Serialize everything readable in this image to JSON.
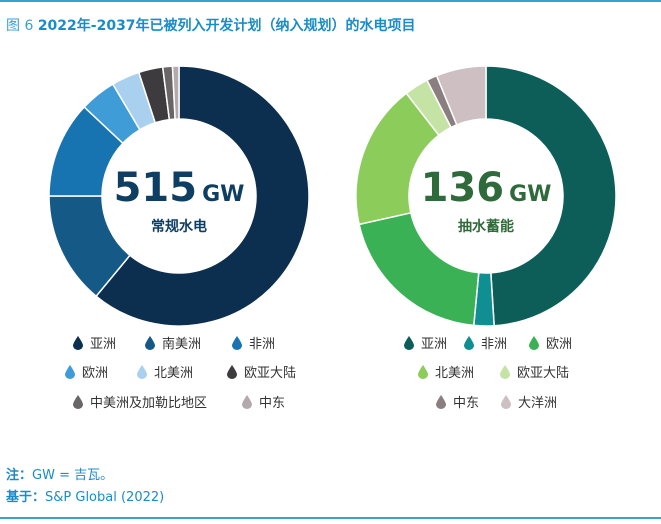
{
  "figure": {
    "label": "图 6",
    "title": "2022年-2037年已被列入开发计划（纳入规划）的水电项目"
  },
  "chart_data": [
    {
      "type": "pie",
      "total": "515",
      "unit": "GW",
      "label": "常规水电",
      "center_color": "#0f3e63",
      "series": [
        {
          "name": "亚洲",
          "value": 61,
          "color": "#0c2e4f"
        },
        {
          "name": "南美洲",
          "value": 14,
          "color": "#155a87"
        },
        {
          "name": "非洲",
          "value": 12,
          "color": "#1874b0"
        },
        {
          "name": "欧洲",
          "value": 4.5,
          "color": "#3f9cd6"
        },
        {
          "name": "北美洲",
          "value": 3.5,
          "color": "#a9d1ef"
        },
        {
          "name": "欧亚大陆",
          "value": 3,
          "color": "#3d3b3e"
        },
        {
          "name": "中美洲及加勒比地区",
          "value": 1.2,
          "color": "#6a6567"
        },
        {
          "name": "中东",
          "value": 0.8,
          "color": "#b3aaad"
        }
      ]
    },
    {
      "type": "pie",
      "total": "136",
      "unit": "GW",
      "label": "抽水蓄能",
      "center_color": "#2f6b3a",
      "series": [
        {
          "name": "亚洲",
          "value": 49,
          "color": "#0d5e58"
        },
        {
          "name": "非洲",
          "value": 2.5,
          "color": "#0f8f92"
        },
        {
          "name": "欧洲",
          "value": 20,
          "color": "#3bb155"
        },
        {
          "name": "北美洲",
          "value": 18,
          "color": "#8ccc5a"
        },
        {
          "name": "欧亚大陆",
          "value": 3,
          "color": "#c5e3a5"
        },
        {
          "name": "中东",
          "value": 1.3,
          "color": "#8b7e81"
        },
        {
          "name": "大洋洲",
          "value": 6.2,
          "color": "#cdbfc2"
        }
      ]
    }
  ],
  "notes": {
    "note_label": "注：",
    "note_text": "GW = 吉瓦。",
    "source_label": "基于：",
    "source_text": "S&P Global (2022)"
  }
}
